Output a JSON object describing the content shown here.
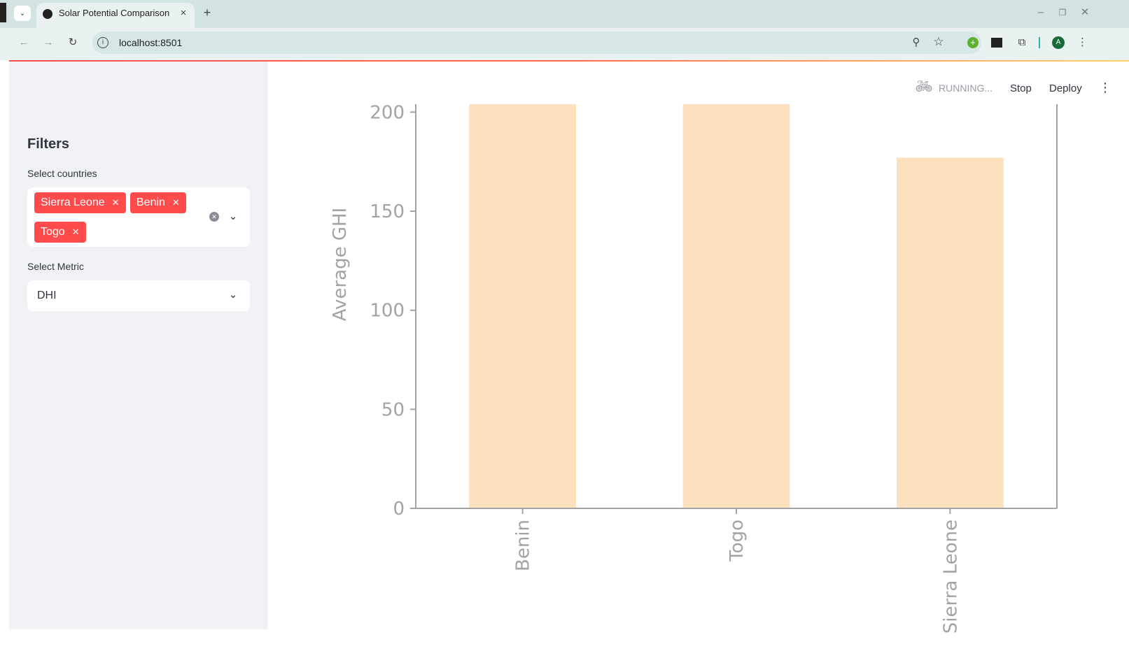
{
  "browser": {
    "tab_title": "Solar Potential Comparison",
    "new_tab": "+",
    "url": "localhost:8501",
    "profile_initial": "A"
  },
  "app": {
    "status": "RUNNING...",
    "stop_label": "Stop",
    "deploy_label": "Deploy"
  },
  "sidebar": {
    "heading": "Filters",
    "countries_label": "Select countries",
    "selected_countries": [
      "Sierra Leone",
      "Benin",
      "Togo"
    ],
    "metric_label": "Select Metric",
    "metric_value": "DHI"
  },
  "colors": {
    "accent": "#ff4b4b",
    "bar": "#fde0bd",
    "axis": "#a3a3a3"
  },
  "chart_data": {
    "type": "bar",
    "categories": [
      "Benin",
      "Togo",
      "Sierra Leone"
    ],
    "values": [
      204,
      204,
      177
    ],
    "ylabel": "Average GHI",
    "xlabel": "",
    "ylim": [
      0,
      204
    ],
    "yticks": [
      0,
      50,
      100,
      150,
      200
    ],
    "grid": false
  }
}
